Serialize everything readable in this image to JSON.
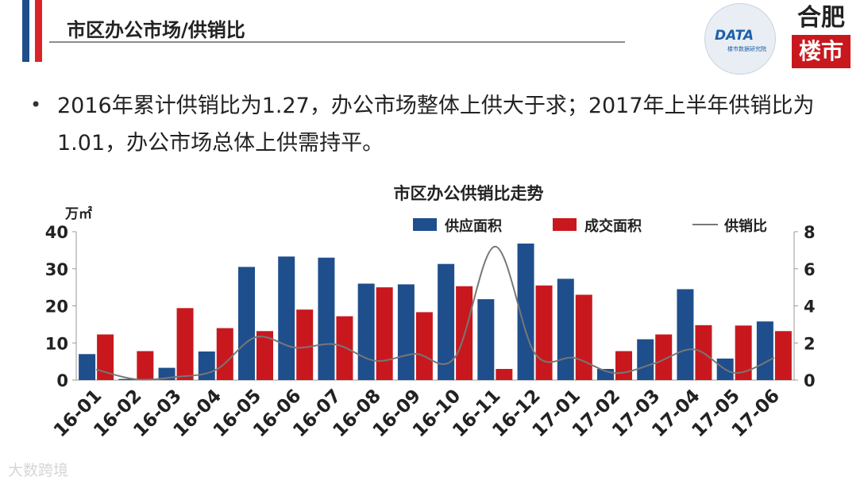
{
  "header": {
    "title": "市区办公市场/供销比"
  },
  "logos": {
    "kdata_text": "DATA",
    "kdata_sub": "楼市数据研究院",
    "hefei_top": "合肥",
    "hefei_bottom": "楼市"
  },
  "bullet": {
    "text": "2016年累计供销比为1.27，办公市场整体上供大于求；2017年上半年供销比为1.01，办公市场总体上供需持平。"
  },
  "watermark": "大数跨境",
  "colors": {
    "supply": "#1f4e8c",
    "deal": "#c8181e",
    "ratio": "#777777"
  },
  "chart_data": {
    "type": "bar",
    "title": "市区办公供销比走势",
    "ylabel": "万㎡",
    "categories": [
      "16-01",
      "16-02",
      "16-03",
      "16-04",
      "16-05",
      "16-06",
      "16-07",
      "16-08",
      "16-09",
      "16-10",
      "16-11",
      "16-12",
      "17-01",
      "17-02",
      "17-03",
      "17-04",
      "17-05",
      "17-06"
    ],
    "series": [
      {
        "name": "供应面积",
        "axis": "left",
        "type": "bar",
        "values": [
          7,
          0.3,
          3.3,
          7.7,
          30.5,
          33.3,
          33,
          26,
          25.8,
          31.3,
          21.8,
          36.8,
          27.3,
          3,
          11,
          24.5,
          5.8,
          15.8
        ]
      },
      {
        "name": "成交面积",
        "axis": "left",
        "type": "bar",
        "values": [
          12.3,
          7.8,
          19.4,
          14,
          13.2,
          19,
          17.2,
          25,
          18.3,
          25.3,
          3,
          25.5,
          23,
          7.8,
          12.3,
          14.8,
          14.7,
          13.2
        ]
      },
      {
        "name": "供销比",
        "axis": "right",
        "type": "line",
        "values": [
          0.57,
          0.04,
          0.17,
          0.55,
          2.31,
          1.75,
          1.92,
          1.04,
          1.41,
          1.24,
          7.2,
          1.44,
          1.19,
          0.38,
          0.9,
          1.65,
          0.39,
          1.2
        ]
      }
    ],
    "ylim": [
      0,
      40
    ],
    "yticks": [
      0,
      10,
      20,
      30,
      40
    ],
    "y2lim": [
      0,
      8
    ],
    "y2ticks": [
      0,
      2,
      4,
      6,
      8
    ],
    "grid": false,
    "legend": "top"
  }
}
